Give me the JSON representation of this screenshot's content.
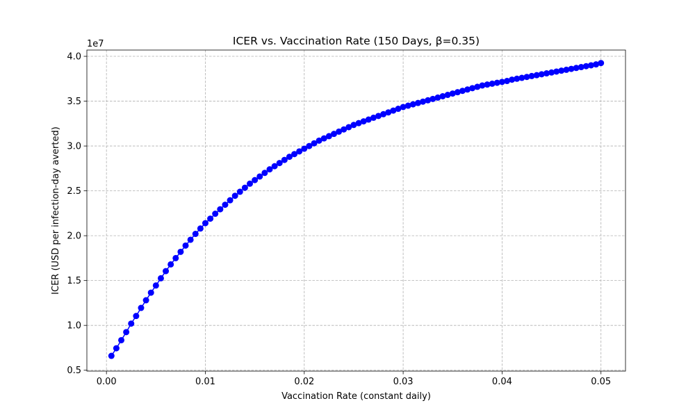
{
  "chart_data": {
    "type": "line",
    "title": "ICER vs. Vaccination Rate (150 Days, β=0.35)",
    "xlabel": "Vaccination Rate (constant daily)",
    "ylabel": "ICER (USD per infection-day averted)",
    "y_offset_text": "1e7",
    "xlim": [
      -0.00198,
      0.05248
    ],
    "ylim": [
      4.9,
      40.7
    ],
    "xticks": [
      0.0,
      0.01,
      0.02,
      0.03,
      0.04,
      0.05
    ],
    "xtick_labels": [
      "0.00",
      "0.01",
      "0.02",
      "0.03",
      "0.04",
      "0.05"
    ],
    "yticks": [
      5.0,
      10.0,
      15.0,
      20.0,
      25.0,
      30.0,
      35.0,
      40.0
    ],
    "ytick_labels": [
      "0.5",
      "1.0",
      "1.5",
      "2.0",
      "2.5",
      "3.0",
      "3.5",
      "4.0"
    ],
    "grid": true,
    "series": [
      {
        "color": "#0000ff",
        "marker": "circle",
        "x": [
          0.0005,
          0.001,
          0.0015,
          0.002,
          0.0025,
          0.003,
          0.0035,
          0.004,
          0.0045,
          0.005,
          0.0055,
          0.006,
          0.0065,
          0.007,
          0.0075,
          0.008,
          0.0085,
          0.009,
          0.0095,
          0.01,
          0.0105,
          0.011,
          0.0115,
          0.012,
          0.0125,
          0.013,
          0.0135,
          0.014,
          0.0145,
          0.015,
          0.0155,
          0.016,
          0.0165,
          0.017,
          0.0175,
          0.018,
          0.0185,
          0.019,
          0.0195,
          0.02,
          0.0205,
          0.021,
          0.0215,
          0.022,
          0.0225,
          0.023,
          0.0235,
          0.024,
          0.0245,
          0.025,
          0.0255,
          0.026,
          0.0265,
          0.027,
          0.0275,
          0.028,
          0.0285,
          0.029,
          0.0295,
          0.03,
          0.0305,
          0.031,
          0.0315,
          0.032,
          0.0325,
          0.033,
          0.0335,
          0.034,
          0.0345,
          0.035,
          0.0355,
          0.036,
          0.0365,
          0.037,
          0.0375,
          0.038,
          0.0385,
          0.039,
          0.0395,
          0.04,
          0.0405,
          0.041,
          0.0415,
          0.042,
          0.0425,
          0.043,
          0.0435,
          0.044,
          0.0445,
          0.045,
          0.0455,
          0.046,
          0.0465,
          0.047,
          0.0475,
          0.048,
          0.0485,
          0.049,
          0.0495,
          0.05
        ],
        "y": [
          6.6,
          7.45,
          8.35,
          9.25,
          10.2,
          11.05,
          11.95,
          12.8,
          13.65,
          14.45,
          15.25,
          16.05,
          16.8,
          17.5,
          18.2,
          18.9,
          19.55,
          20.2,
          20.8,
          21.4,
          21.9,
          22.45,
          22.95,
          23.45,
          23.95,
          24.45,
          24.9,
          25.35,
          25.8,
          26.2,
          26.6,
          27.0,
          27.4,
          27.75,
          28.1,
          28.45,
          28.8,
          29.1,
          29.4,
          29.7,
          30.0,
          30.3,
          30.6,
          30.85,
          31.1,
          31.35,
          31.6,
          31.85,
          32.1,
          32.35,
          32.55,
          32.75,
          32.95,
          33.15,
          33.35,
          33.55,
          33.75,
          33.95,
          34.15,
          34.35,
          34.5,
          34.65,
          34.8,
          34.95,
          35.1,
          35.25,
          35.4,
          35.55,
          35.7,
          35.85,
          36.0,
          36.15,
          36.3,
          36.45,
          36.6,
          36.75,
          36.85,
          36.95,
          37.05,
          37.15,
          37.25,
          37.4,
          37.5,
          37.6,
          37.7,
          37.8,
          37.9,
          38.0,
          38.1,
          38.2,
          38.3,
          38.4,
          38.5,
          38.6,
          38.7,
          38.8,
          38.9,
          39.0,
          39.1,
          39.25
        ]
      }
    ]
  }
}
